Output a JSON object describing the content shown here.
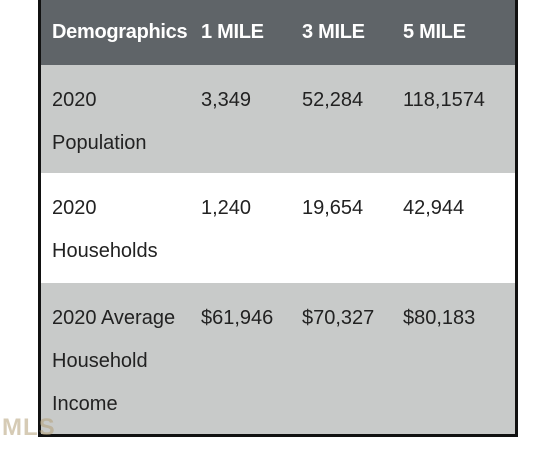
{
  "table": {
    "header": [
      "Demographics",
      "1 MILE",
      "3 MILE",
      "5 MILE"
    ],
    "rows": [
      [
        "2020 Population",
        "3,349",
        "52,284",
        "118,1574"
      ],
      [
        "2020 Households",
        "1,240",
        "19,654",
        "42,944"
      ],
      [
        "2020 Average Household Income",
        "$61,946",
        "$70,327",
        "$80,183"
      ]
    ]
  },
  "watermark": "MLS"
}
